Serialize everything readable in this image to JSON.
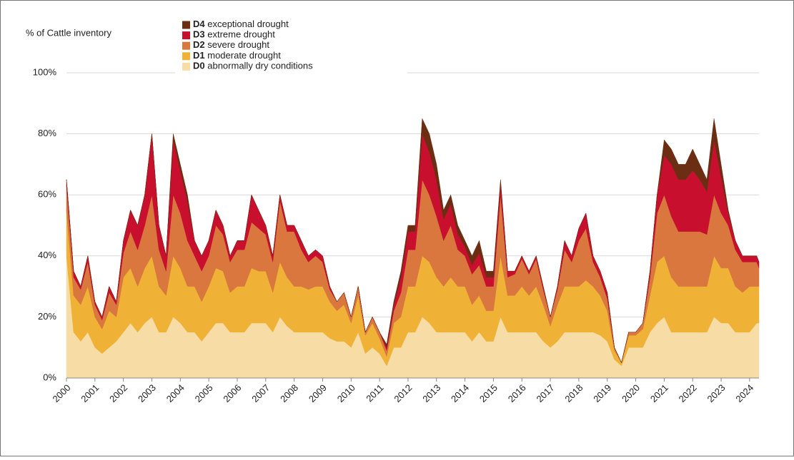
{
  "chart_data": {
    "type": "stacked-area",
    "y_label": "% of Cattle inventory",
    "x": [
      2000,
      2000.25,
      2000.5,
      2000.75,
      2001,
      2001.25,
      2001.5,
      2001.75,
      2002,
      2002.25,
      2002.5,
      2002.75,
      2003,
      2003.25,
      2003.5,
      2003.75,
      2004,
      2004.25,
      2004.5,
      2004.75,
      2005,
      2005.25,
      2005.5,
      2005.75,
      2006,
      2006.25,
      2006.5,
      2006.75,
      2007,
      2007.25,
      2007.5,
      2007.75,
      2008,
      2008.25,
      2008.5,
      2008.75,
      2009,
      2009.25,
      2009.5,
      2009.75,
      2010,
      2010.25,
      2010.5,
      2010.75,
      2011,
      2011.25,
      2011.5,
      2011.75,
      2012,
      2012.25,
      2012.5,
      2012.75,
      2013,
      2013.25,
      2013.5,
      2013.75,
      2014,
      2014.25,
      2014.5,
      2014.75,
      2015,
      2015.25,
      2015.5,
      2015.75,
      2016,
      2016.25,
      2016.5,
      2016.75,
      2017,
      2017.25,
      2017.5,
      2017.75,
      2018,
      2018.25,
      2018.5,
      2018.75,
      2019,
      2019.25,
      2019.5,
      2019.75,
      2020,
      2020.25,
      2020.5,
      2020.75,
      2021,
      2021.25,
      2021.5,
      2021.75,
      2022,
      2022.25,
      2022.5,
      2022.75,
      2023,
      2023.25,
      2023.5,
      2023.75,
      2024,
      2024.25,
      2024.33
    ],
    "series": [
      {
        "name": "D0 abnormally dry conditions",
        "color": "#f7dca6",
        "values": [
          40,
          15,
          12,
          15,
          10,
          8,
          10,
          12,
          15,
          18,
          15,
          18,
          20,
          15,
          15,
          20,
          18,
          15,
          15,
          12,
          15,
          18,
          18,
          15,
          15,
          15,
          18,
          18,
          18,
          15,
          20,
          17,
          15,
          15,
          15,
          15,
          15,
          13,
          12,
          12,
          10,
          15,
          8,
          10,
          8,
          4,
          10,
          10,
          15,
          15,
          20,
          18,
          15,
          15,
          15,
          15,
          15,
          12,
          15,
          12,
          12,
          20,
          15,
          15,
          15,
          15,
          15,
          12,
          10,
          12,
          15,
          15,
          15,
          15,
          15,
          14,
          12,
          6,
          4,
          10,
          10,
          10,
          15,
          18,
          20,
          15,
          15,
          15,
          15,
          15,
          15,
          20,
          18,
          18,
          15,
          15,
          15,
          18,
          18
        ]
      },
      {
        "name": "D1 moderate drought",
        "color": "#efb236",
        "values": [
          15,
          12,
          12,
          15,
          10,
          8,
          12,
          8,
          18,
          18,
          15,
          18,
          20,
          15,
          12,
          20,
          18,
          15,
          15,
          13,
          15,
          18,
          17,
          13,
          15,
          15,
          18,
          17,
          17,
          13,
          18,
          16,
          15,
          15,
          14,
          15,
          15,
          12,
          10,
          12,
          8,
          12,
          6,
          8,
          5,
          3,
          8,
          10,
          15,
          15,
          20,
          20,
          18,
          15,
          18,
          15,
          15,
          12,
          12,
          10,
          10,
          20,
          12,
          12,
          15,
          12,
          15,
          12,
          7,
          12,
          15,
          15,
          15,
          17,
          15,
          13,
          10,
          3,
          1,
          4,
          4,
          6,
          12,
          20,
          20,
          18,
          15,
          15,
          15,
          15,
          15,
          20,
          18,
          18,
          15,
          13,
          15,
          12,
          12
        ]
      },
      {
        "name": "D2 severe drought",
        "color": "#d9773f",
        "values": [
          8,
          6,
          5,
          8,
          4,
          3,
          6,
          4,
          8,
          12,
          12,
          14,
          20,
          12,
          8,
          20,
          18,
          15,
          10,
          10,
          10,
          14,
          12,
          10,
          12,
          12,
          15,
          14,
          12,
          10,
          20,
          15,
          18,
          12,
          9,
          10,
          8,
          4,
          3,
          4,
          2,
          3,
          1,
          2,
          2,
          2,
          4,
          8,
          12,
          12,
          25,
          22,
          20,
          15,
          17,
          12,
          10,
          10,
          10,
          8,
          8,
          20,
          6,
          7,
          9,
          7,
          9,
          5,
          3,
          5,
          12,
          8,
          15,
          17,
          8,
          6,
          4,
          1,
          0,
          1,
          1,
          2,
          6,
          16,
          20,
          20,
          18,
          18,
          18,
          18,
          17,
          20,
          18,
          14,
          12,
          10,
          8,
          8,
          6
        ]
      },
      {
        "name": "D3 extreme drought",
        "color": "#c8102e",
        "values": [
          2,
          2,
          1,
          2,
          1,
          1,
          2,
          1,
          4,
          7,
          8,
          10,
          20,
          8,
          5,
          18,
          14,
          13,
          5,
          5,
          5,
          5,
          3,
          2,
          3,
          3,
          9,
          6,
          3,
          2,
          2,
          2,
          2,
          3,
          2,
          2,
          2,
          1,
          0,
          0,
          0,
          0,
          0,
          0,
          0,
          1,
          2,
          5,
          6,
          6,
          15,
          14,
          12,
          7,
          7,
          5,
          3,
          3,
          4,
          3,
          3,
          4,
          2,
          1,
          1,
          1,
          1,
          1,
          0,
          1,
          3,
          2,
          4,
          5,
          2,
          2,
          2,
          0,
          0,
          0,
          0,
          0,
          2,
          6,
          13,
          17,
          17,
          17,
          20,
          17,
          14,
          18,
          12,
          4,
          3,
          2,
          2,
          2,
          2
        ]
      },
      {
        "name": "D4 exceptional drought",
        "color": "#6b2e12",
        "values": [
          0,
          0,
          0,
          0,
          0,
          0,
          0,
          0,
          0,
          0,
          0,
          0,
          0,
          0,
          0,
          2,
          2,
          2,
          0,
          0,
          0,
          0,
          0,
          0,
          0,
          0,
          0,
          0,
          0,
          0,
          0,
          0,
          0,
          0,
          0,
          0,
          0,
          0,
          0,
          0,
          0,
          0,
          0,
          0,
          0,
          1,
          1,
          2,
          2,
          2,
          5,
          6,
          5,
          3,
          3,
          3,
          2,
          3,
          4,
          2,
          2,
          1,
          0,
          0,
          0,
          0,
          0,
          0,
          0,
          0,
          0,
          0,
          0,
          0,
          0,
          0,
          0,
          0,
          0,
          0,
          0,
          0,
          0,
          0,
          5,
          5,
          5,
          5,
          7,
          5,
          4,
          7,
          4,
          1,
          0,
          0,
          0,
          0,
          0
        ]
      }
    ],
    "xlim": [
      2000,
      2024.33
    ],
    "xticks": [
      2000,
      2001,
      2002,
      2003,
      2004,
      2005,
      2006,
      2007,
      2008,
      2009,
      2010,
      2011,
      2012,
      2013,
      2014,
      2015,
      2016,
      2017,
      2018,
      2019,
      2020,
      2021,
      2022,
      2023,
      2024
    ],
    "ylim": [
      0,
      100
    ],
    "yticks": [
      {
        "value": 0,
        "label": "0%"
      },
      {
        "value": 20,
        "label": "20%"
      },
      {
        "value": 40,
        "label": "40%"
      },
      {
        "value": 60,
        "label": "60%"
      },
      {
        "value": 80,
        "label": "80%"
      },
      {
        "value": 100,
        "label": "100%"
      }
    ],
    "grid": true,
    "legend": "top-left"
  }
}
